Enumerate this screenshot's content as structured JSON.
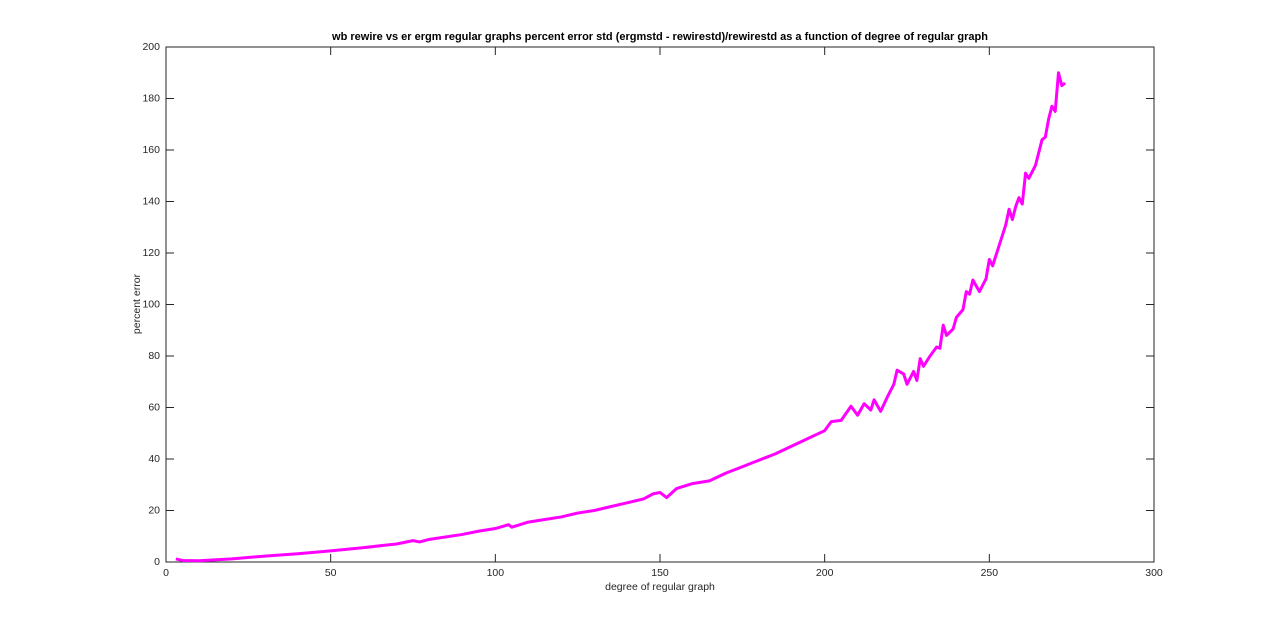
{
  "chart_data": {
    "type": "line",
    "title": "wb rewire vs er ergm regular graphs percent error std (ergmstd - rewirestd)/rewirestd as a function of degree of regular graph",
    "x_label": "degree of regular graph",
    "y_label": "percent error",
    "xlim": [
      0,
      300
    ],
    "ylim": [
      0,
      200
    ],
    "xticks": [
      0,
      50,
      100,
      150,
      200,
      250,
      300
    ],
    "yticks": [
      0,
      20,
      40,
      60,
      80,
      100,
      120,
      140,
      160,
      180,
      200
    ],
    "color": "#ff00ff",
    "x": [
      3,
      5,
      10,
      20,
      30,
      40,
      50,
      60,
      70,
      75,
      77,
      80,
      90,
      95,
      100,
      104,
      105,
      110,
      115,
      120,
      125,
      130,
      135,
      140,
      145,
      148,
      150,
      152,
      155,
      160,
      165,
      170,
      175,
      180,
      185,
      190,
      195,
      200,
      202,
      205,
      208,
      210,
      212,
      214,
      215,
      217,
      219,
      221,
      222,
      224,
      225,
      227,
      228,
      229,
      230,
      232,
      234,
      235,
      236,
      237,
      239,
      240,
      242,
      243,
      244,
      245,
      247,
      249,
      250,
      251,
      253,
      255,
      256,
      257,
      258,
      259,
      260,
      261,
      262,
      264,
      266,
      267,
      268,
      269,
      270,
      271,
      272,
      273
    ],
    "values": [
      1.2,
      0.6,
      0.5,
      1.2,
      2.3,
      3.2,
      4.3,
      5.6,
      7.0,
      8.3,
      7.8,
      8.8,
      10.7,
      12,
      13.0,
      14.5,
      13.5,
      15.5,
      16.5,
      17.5,
      19.0,
      20,
      21.5,
      23,
      24.5,
      26.5,
      27,
      25.0,
      28.5,
      30.5,
      31.5,
      34.5,
      37,
      39.5,
      42,
      45,
      48,
      51,
      54.5,
      55,
      60.5,
      57,
      61.5,
      59,
      63,
      58.5,
      64,
      69,
      74.5,
      73,
      69,
      74,
      70.5,
      79,
      76,
      80,
      83.5,
      83,
      92,
      88,
      90.5,
      95,
      98,
      105,
      104,
      109.5,
      105,
      110,
      117.5,
      115,
      123,
      131,
      137,
      133,
      138,
      141.5,
      139,
      151,
      149,
      154,
      164,
      165,
      172,
      177,
      175,
      190,
      185,
      186
    ]
  }
}
